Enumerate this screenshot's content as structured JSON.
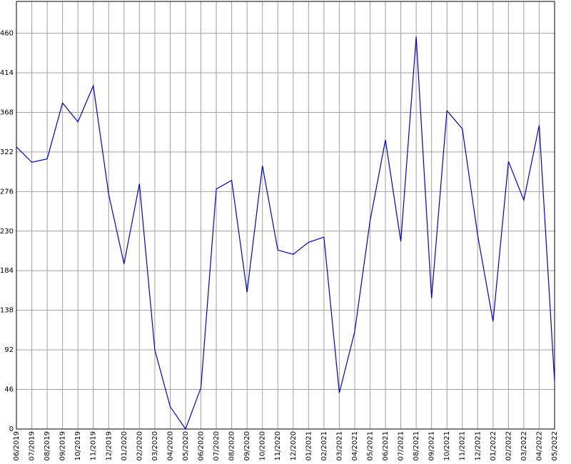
{
  "chart_data": {
    "type": "line",
    "categories": [
      "06/2019",
      "07/2019",
      "08/2019",
      "09/2019",
      "10/2019",
      "11/2019",
      "12/2019",
      "01/2020",
      "02/2020",
      "03/2020",
      "04/2020",
      "05/2020",
      "06/2020",
      "07/2020",
      "08/2020",
      "09/2020",
      "10/2020",
      "11/2020",
      "12/2020",
      "01/2021",
      "02/2021",
      "03/2021",
      "04/2021",
      "05/2021",
      "06/2021",
      "07/2021",
      "08/2021",
      "09/2021",
      "10/2021",
      "11/2021",
      "12/2021",
      "01/2022",
      "02/2022",
      "03/2022",
      "04/2022",
      "05/2022"
    ],
    "values": [
      328,
      310,
      314,
      379,
      357,
      399,
      273,
      192,
      285,
      92,
      26,
      0,
      48,
      279,
      289,
      159,
      306,
      208,
      203,
      217,
      223,
      42,
      113,
      242,
      336,
      218,
      456,
      152,
      370,
      349,
      225,
      125,
      311,
      266,
      353,
      55
    ],
    "color": "#0000cc",
    "ylim": [
      0,
      497
    ],
    "yticks": [
      0,
      46,
      92,
      138,
      184,
      230,
      276,
      322,
      368,
      414,
      460
    ],
    "grid": true
  }
}
